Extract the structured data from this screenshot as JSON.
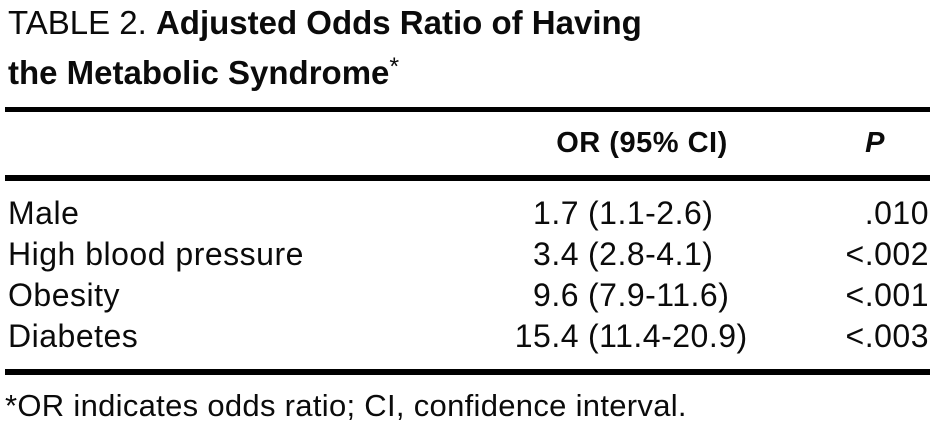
{
  "title": {
    "number": "TABLE 2.",
    "line1": "Adjusted Odds Ratio of Having",
    "line2": "the Metabolic Syndrome",
    "asterisk": "*"
  },
  "table": {
    "or_header": "OR (95% CI)",
    "p_header": "P",
    "rows": [
      {
        "label": "Male",
        "or": "1.7",
        "ci": "(1.1-2.6)",
        "p": ".010"
      },
      {
        "label": "High blood pressure",
        "or": "3.4",
        "ci": "(2.8-4.1)",
        "p": "<.002"
      },
      {
        "label": "Obesity",
        "or": "9.6",
        "ci": "(7.9-11.6)",
        "p": "<.001"
      },
      {
        "label": "Diabetes",
        "or": "15.4",
        "ci": "(11.4-20.9)",
        "p": "<.003"
      }
    ]
  },
  "footnote": "*OR indicates odds ratio; CI, confidence interval.",
  "colors": {
    "text": "#0b0b0b",
    "rule": "#000000",
    "background": "#ffffff"
  }
}
